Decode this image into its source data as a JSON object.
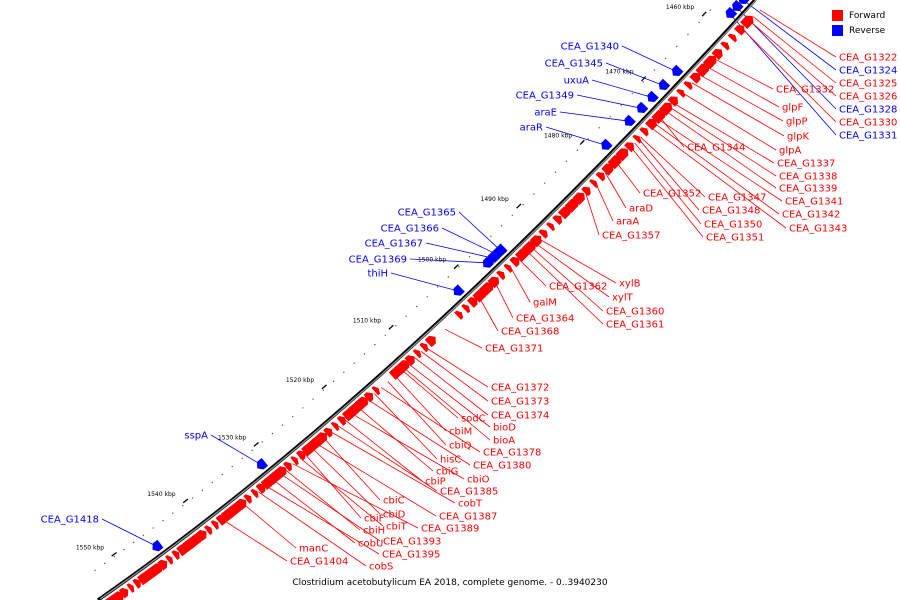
{
  "legend": {
    "forward_label": "Forward",
    "reverse_label": "Reverse",
    "forward_color": "#ff0000",
    "reverse_color": "#0000ff"
  },
  "caption": "Clostridium acetobutylicum EA 2018, complete genome. - 0..3940230",
  "ticks": [
    "1460 kbp",
    "1470 kbp",
    "1480 kbp",
    "1490 kbp",
    "1500 kbp",
    "1510 kbp",
    "1520 kbp",
    "1530 kbp",
    "1540 kbp",
    "1550 kbp"
  ],
  "reverse_genes": [
    "CEA_G1340",
    "CEA_G1345",
    "uxuA",
    "CEA_G1349",
    "araE",
    "araR",
    "CEA_G1365",
    "CEA_G1366",
    "CEA_G1367",
    "CEA_G1369",
    "thiH",
    "sspA",
    "CEA_G1418"
  ],
  "reverse_genes_right": [
    "CEA_G1324",
    "CEA_G1328",
    "CEA_G1331"
  ],
  "forward_genes": [
    "CEA_G1322",
    "CEA_G1325",
    "CEA_G1326",
    "CEA_G1330",
    "CEA_G1332",
    "glpF",
    "glpP",
    "glpK",
    "glpA",
    "CEA_G1344",
    "CEA_G1337",
    "CEA_G1338",
    "CEA_G1339",
    "CEA_G1341",
    "CEA_G1342",
    "CEA_G1343",
    "CEA_G1347",
    "CEA_G1348",
    "CEA_G1350",
    "CEA_G1351",
    "CEA_G1352",
    "araD",
    "araA",
    "CEA_G1357",
    "xylB",
    "xylT",
    "CEA_G1360",
    "CEA_G1361",
    "CEA_G1362",
    "galM",
    "CEA_G1364",
    "CEA_G1368",
    "CEA_G1371",
    "CEA_G1372",
    "CEA_G1373",
    "CEA_G1374",
    "sodC",
    "bioD",
    "cbiM",
    "bioA",
    "cbiQ",
    "CEA_G1378",
    "hisC",
    "CEA_G1380",
    "cbiG",
    "cbiO",
    "cbiP",
    "CEA_G1385",
    "cobT",
    "cbiC",
    "CEA_G1387",
    "cbiD",
    "cbiF",
    "cbiT",
    "CEA_G1389",
    "cbiH",
    "CEA_G1393",
    "cobU",
    "CEA_G1395",
    "cobS",
    "manC",
    "CEA_G1404"
  ]
}
